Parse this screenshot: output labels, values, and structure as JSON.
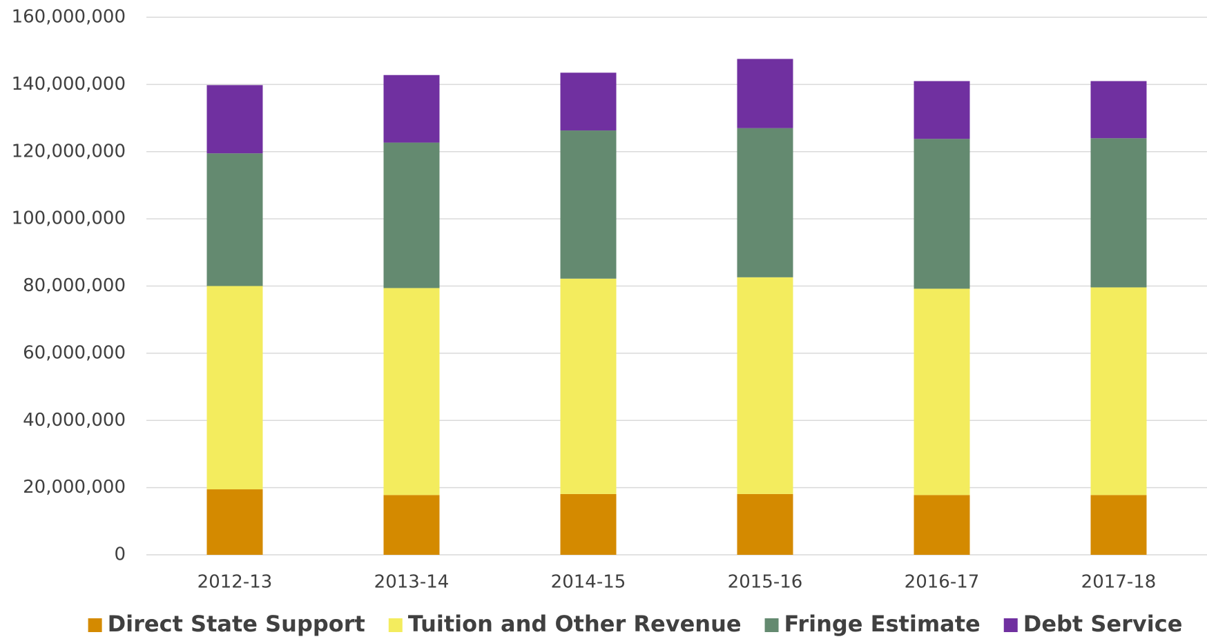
{
  "chart_data": {
    "type": "stacked_bar",
    "categories": [
      "2012-13",
      "2013-14",
      "2014-15",
      "2015-16",
      "2016-17",
      "2017-18"
    ],
    "series": [
      {
        "name": "Direct State Support",
        "color": "#d48a00",
        "values": [
          19500000,
          17800000,
          18100000,
          18100000,
          17800000,
          17800000
        ]
      },
      {
        "name": "Tuition and Other Revenue",
        "color": "#f3ec5e",
        "values": [
          60500000,
          61600000,
          64100000,
          64500000,
          61400000,
          61800000
        ]
      },
      {
        "name": "Fringe Estimate",
        "color": "#648a70",
        "values": [
          39500000,
          43300000,
          44100000,
          44400000,
          44600000,
          44400000
        ]
      },
      {
        "name": "Debt Service",
        "color": "#7030a0",
        "values": [
          20300000,
          20100000,
          17200000,
          20600000,
          17200000,
          17000000
        ]
      }
    ],
    "ylim": [
      0,
      160000000
    ],
    "yticks": [
      0,
      {
        "value": 20000000,
        "label": "20,000,000"
      },
      {
        "value": 40000000,
        "label": "40,000,000"
      },
      {
        "value": 60000000,
        "label": "60,000,000"
      },
      {
        "value": 80000000,
        "label": "80,000,000"
      },
      {
        "value": 100000000,
        "label": "100,000,000"
      },
      {
        "value": 120000000,
        "label": "120,000,000"
      },
      {
        "value": 140000000,
        "label": "140,000,000"
      },
      {
        "value": 160000000,
        "label": "160,000,000"
      }
    ],
    "grid": true,
    "legend": "bottom"
  }
}
